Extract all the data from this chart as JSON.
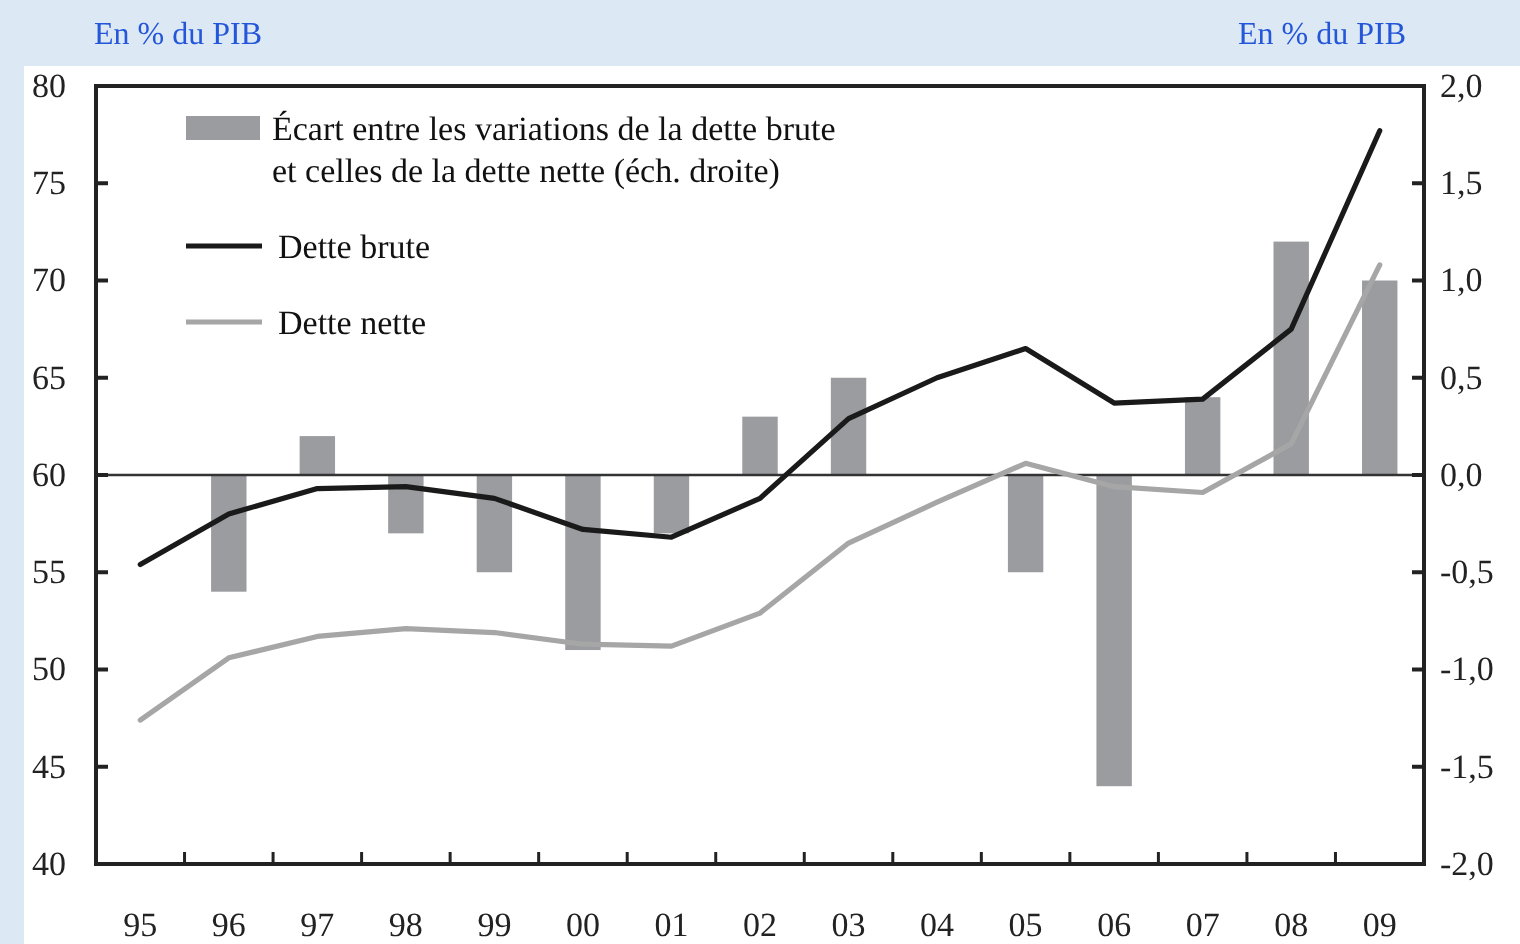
{
  "chart_data": {
    "type": "line",
    "ylabel": "En % du PIB",
    "y2label": "En % du PIB",
    "categories": [
      "95",
      "96",
      "97",
      "98",
      "99",
      "00",
      "01",
      "02",
      "03",
      "04",
      "05",
      "06",
      "07",
      "08",
      "09"
    ],
    "series": [
      {
        "name": "Écart entre les variations de la dette brute et celles de la dette nette (éch. droite)",
        "type": "bar",
        "axis": "y2",
        "color": "#9b9ca0",
        "values": [
          null,
          -0.6,
          0.2,
          -0.3,
          -0.5,
          -0.9,
          -0.3,
          0.3,
          0.5,
          null,
          -0.5,
          -1.6,
          0.4,
          1.2,
          1.0
        ]
      },
      {
        "name": "Dette brute",
        "color": "#1a1a1a",
        "values": [
          55.4,
          58.0,
          59.3,
          59.4,
          58.8,
          57.2,
          56.8,
          58.8,
          62.9,
          65.0,
          66.5,
          63.7,
          63.9,
          67.5,
          77.7
        ]
      },
      {
        "name": "Dette nette",
        "color": "#a6a6a6",
        "values": [
          47.4,
          50.6,
          51.7,
          52.1,
          51.9,
          51.3,
          51.2,
          52.9,
          56.5,
          58.6,
          60.6,
          59.4,
          59.1,
          61.6,
          70.8
        ]
      }
    ],
    "ylim": [
      40,
      80
    ],
    "yticks": [
      40,
      45,
      50,
      55,
      60,
      65,
      70,
      75,
      80
    ],
    "y2lim": [
      -2,
      2
    ],
    "y2ticks": [
      {
        "value": -2,
        "label": "-2,0"
      },
      {
        "value": -1.5,
        "label": "-1,5"
      },
      {
        "value": -1,
        "label": "-1,0"
      },
      {
        "value": -0.5,
        "label": "-0,5"
      },
      {
        "value": 0,
        "label": "0,0"
      },
      {
        "value": 0.5,
        "label": "0,5"
      },
      {
        "value": 1,
        "label": "1,0"
      },
      {
        "value": 1.5,
        "label": "1,5"
      },
      {
        "value": 2,
        "label": "2,0"
      }
    ],
    "ref_lines": [
      {
        "axis": "y2",
        "value": 0,
        "color": "#333333"
      }
    ],
    "legend": "top left"
  }
}
